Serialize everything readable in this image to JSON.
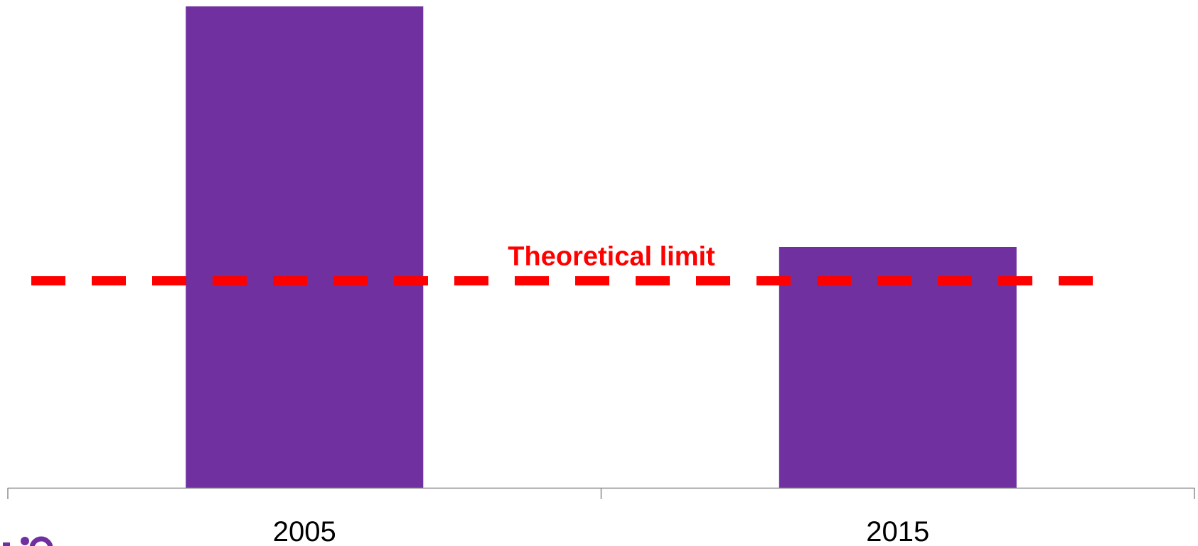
{
  "chart_data": {
    "type": "bar",
    "categories": [
      "2005",
      "2015"
    ],
    "values": [
      100,
      50
    ],
    "ylim": [
      0,
      100
    ],
    "title": "",
    "xlabel": "",
    "ylabel": "",
    "grid": false,
    "legend": "none",
    "bar_color": "#7030a0",
    "axis_color": "#8c8c8c",
    "reference_line": {
      "value": 43,
      "label": "Theoretical limit",
      "color": "#ff0000",
      "style": "dashed",
      "x_extent": "from left edge to just past the 2015 bar"
    }
  },
  "logo": {
    "color": "#7030a0",
    "description": "partially cropped purple logo in bottom-left corner"
  }
}
